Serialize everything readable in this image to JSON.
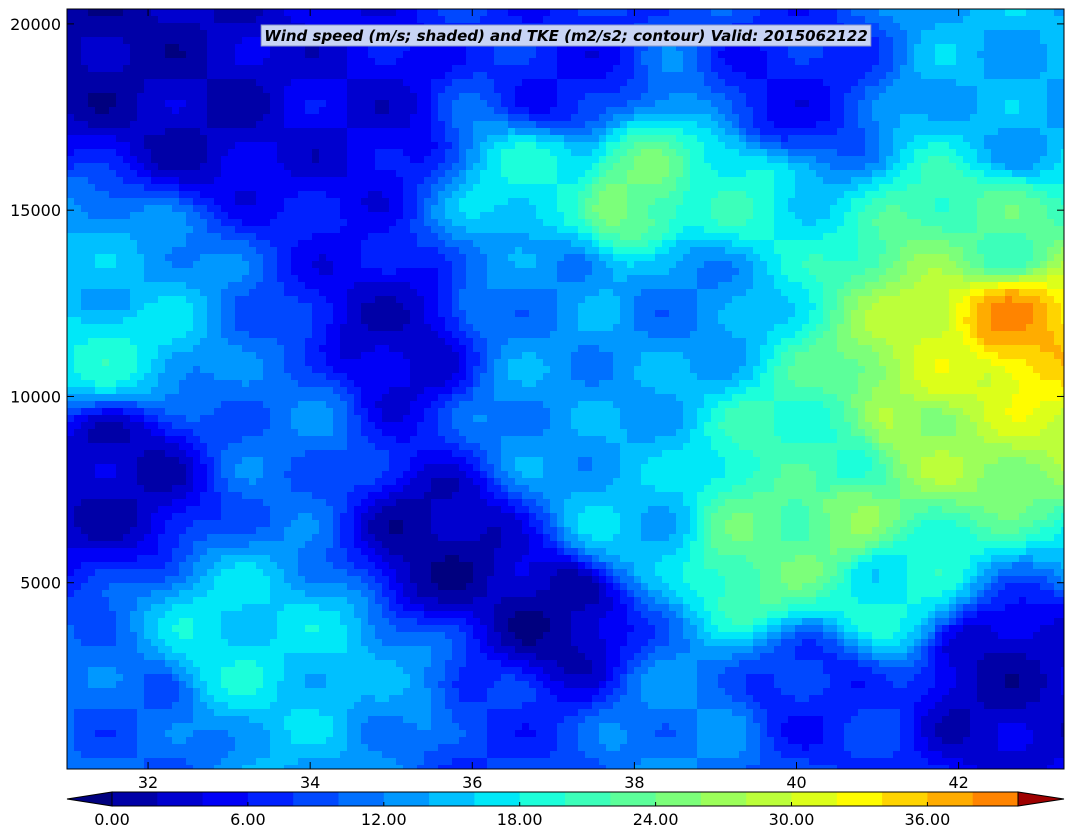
{
  "chart_data": {
    "type": "heatmap",
    "title": "Wind speed (m/s; shaded) and TKE (m2/s2; contour) Valid: 2015062122",
    "xlabel": "",
    "ylabel": "",
    "x_ticks": [
      32,
      34,
      36,
      38,
      40,
      42
    ],
    "y_ticks": [
      5000,
      10000,
      15000,
      20000
    ],
    "xlim": [
      31,
      43.3
    ],
    "ylim": [
      0,
      20400
    ],
    "colorbar": {
      "min": 0,
      "max": 40,
      "step": 2,
      "extend": "both",
      "tick_values": [
        0,
        6,
        12,
        18,
        24,
        30,
        36
      ],
      "tick_labels": [
        "0.00",
        "6.00",
        "12.00",
        "18.00",
        "24.00",
        "30.00",
        "36.00"
      ],
      "colors": [
        "#00007f",
        "#0000a7",
        "#0000cf",
        "#0000f7",
        "#0020ff",
        "#0048ff",
        "#0070ff",
        "#0098ff",
        "#00c0ff",
        "#00e8f8",
        "#1cffda",
        "#3cffba",
        "#5cff9a",
        "#7cff7a",
        "#9cff5a",
        "#bcff3a",
        "#dcff1a",
        "#fffc00",
        "#ffd400",
        "#ffac00",
        "#ff8400",
        "#ff5c00",
        "#ff3400",
        "#f20c00",
        "#c80000",
        "#9e0000"
      ]
    },
    "field_features": [
      {
        "x": 42.6,
        "y": 12000,
        "value": 37,
        "desc": "jet core maximum"
      },
      {
        "x": 41.9,
        "y": 10500,
        "value": 30
      },
      {
        "x": 41.6,
        "y": 9000,
        "value": 27
      },
      {
        "x": 42.5,
        "y": 14200,
        "value": 22
      },
      {
        "x": 40.6,
        "y": 6800,
        "value": 25
      },
      {
        "x": 39.7,
        "y": 5800,
        "value": 23
      },
      {
        "x": 40.4,
        "y": 8200,
        "value": 20
      },
      {
        "x": 41.2,
        "y": 5000,
        "value": 18
      },
      {
        "x": 38.0,
        "y": 15400,
        "value": 24
      },
      {
        "x": 39.2,
        "y": 15600,
        "value": 19
      },
      {
        "x": 36.9,
        "y": 15600,
        "value": 18
      },
      {
        "x": 36.8,
        "y": 13200,
        "value": 12
      },
      {
        "x": 38.6,
        "y": 12800,
        "value": 12
      },
      {
        "x": 42.8,
        "y": 17500,
        "value": 14
      },
      {
        "x": 31.5,
        "y": 11500,
        "value": 18
      },
      {
        "x": 31.5,
        "y": 13000,
        "value": 14
      },
      {
        "x": 33.0,
        "y": 3100,
        "value": 17
      },
      {
        "x": 34.2,
        "y": 2900,
        "value": 16
      },
      {
        "x": 35.0,
        "y": 2200,
        "value": 13
      },
      {
        "x": 32.0,
        "y": 1200,
        "value": 10
      },
      {
        "x": 37.8,
        "y": 6800,
        "value": 15
      },
      {
        "x": 37.0,
        "y": 9500,
        "value": 13
      },
      {
        "x": 33.8,
        "y": 9500,
        "value": 11
      },
      {
        "x": 31.3,
        "y": 19800,
        "value": 1
      },
      {
        "x": 32.5,
        "y": 18000,
        "value": 2
      },
      {
        "x": 31.6,
        "y": 8000,
        "value": 2
      },
      {
        "x": 35.6,
        "y": 5800,
        "value": 1
      },
      {
        "x": 37.0,
        "y": 4200,
        "value": 1
      },
      {
        "x": 35.0,
        "y": 11500,
        "value": 3
      },
      {
        "x": 42.4,
        "y": 2500,
        "value": 2
      },
      {
        "x": 34.6,
        "y": 17500,
        "value": 4
      },
      {
        "x": 37.2,
        "y": 18500,
        "value": 6
      },
      {
        "x": 39.8,
        "y": 18000,
        "value": 6
      },
      {
        "x": 38.6,
        "y": 1000,
        "value": 12
      },
      {
        "x": 36.2,
        "y": 800,
        "value": 8
      },
      {
        "x": 40.2,
        "y": 2000,
        "value": 7
      }
    ]
  }
}
